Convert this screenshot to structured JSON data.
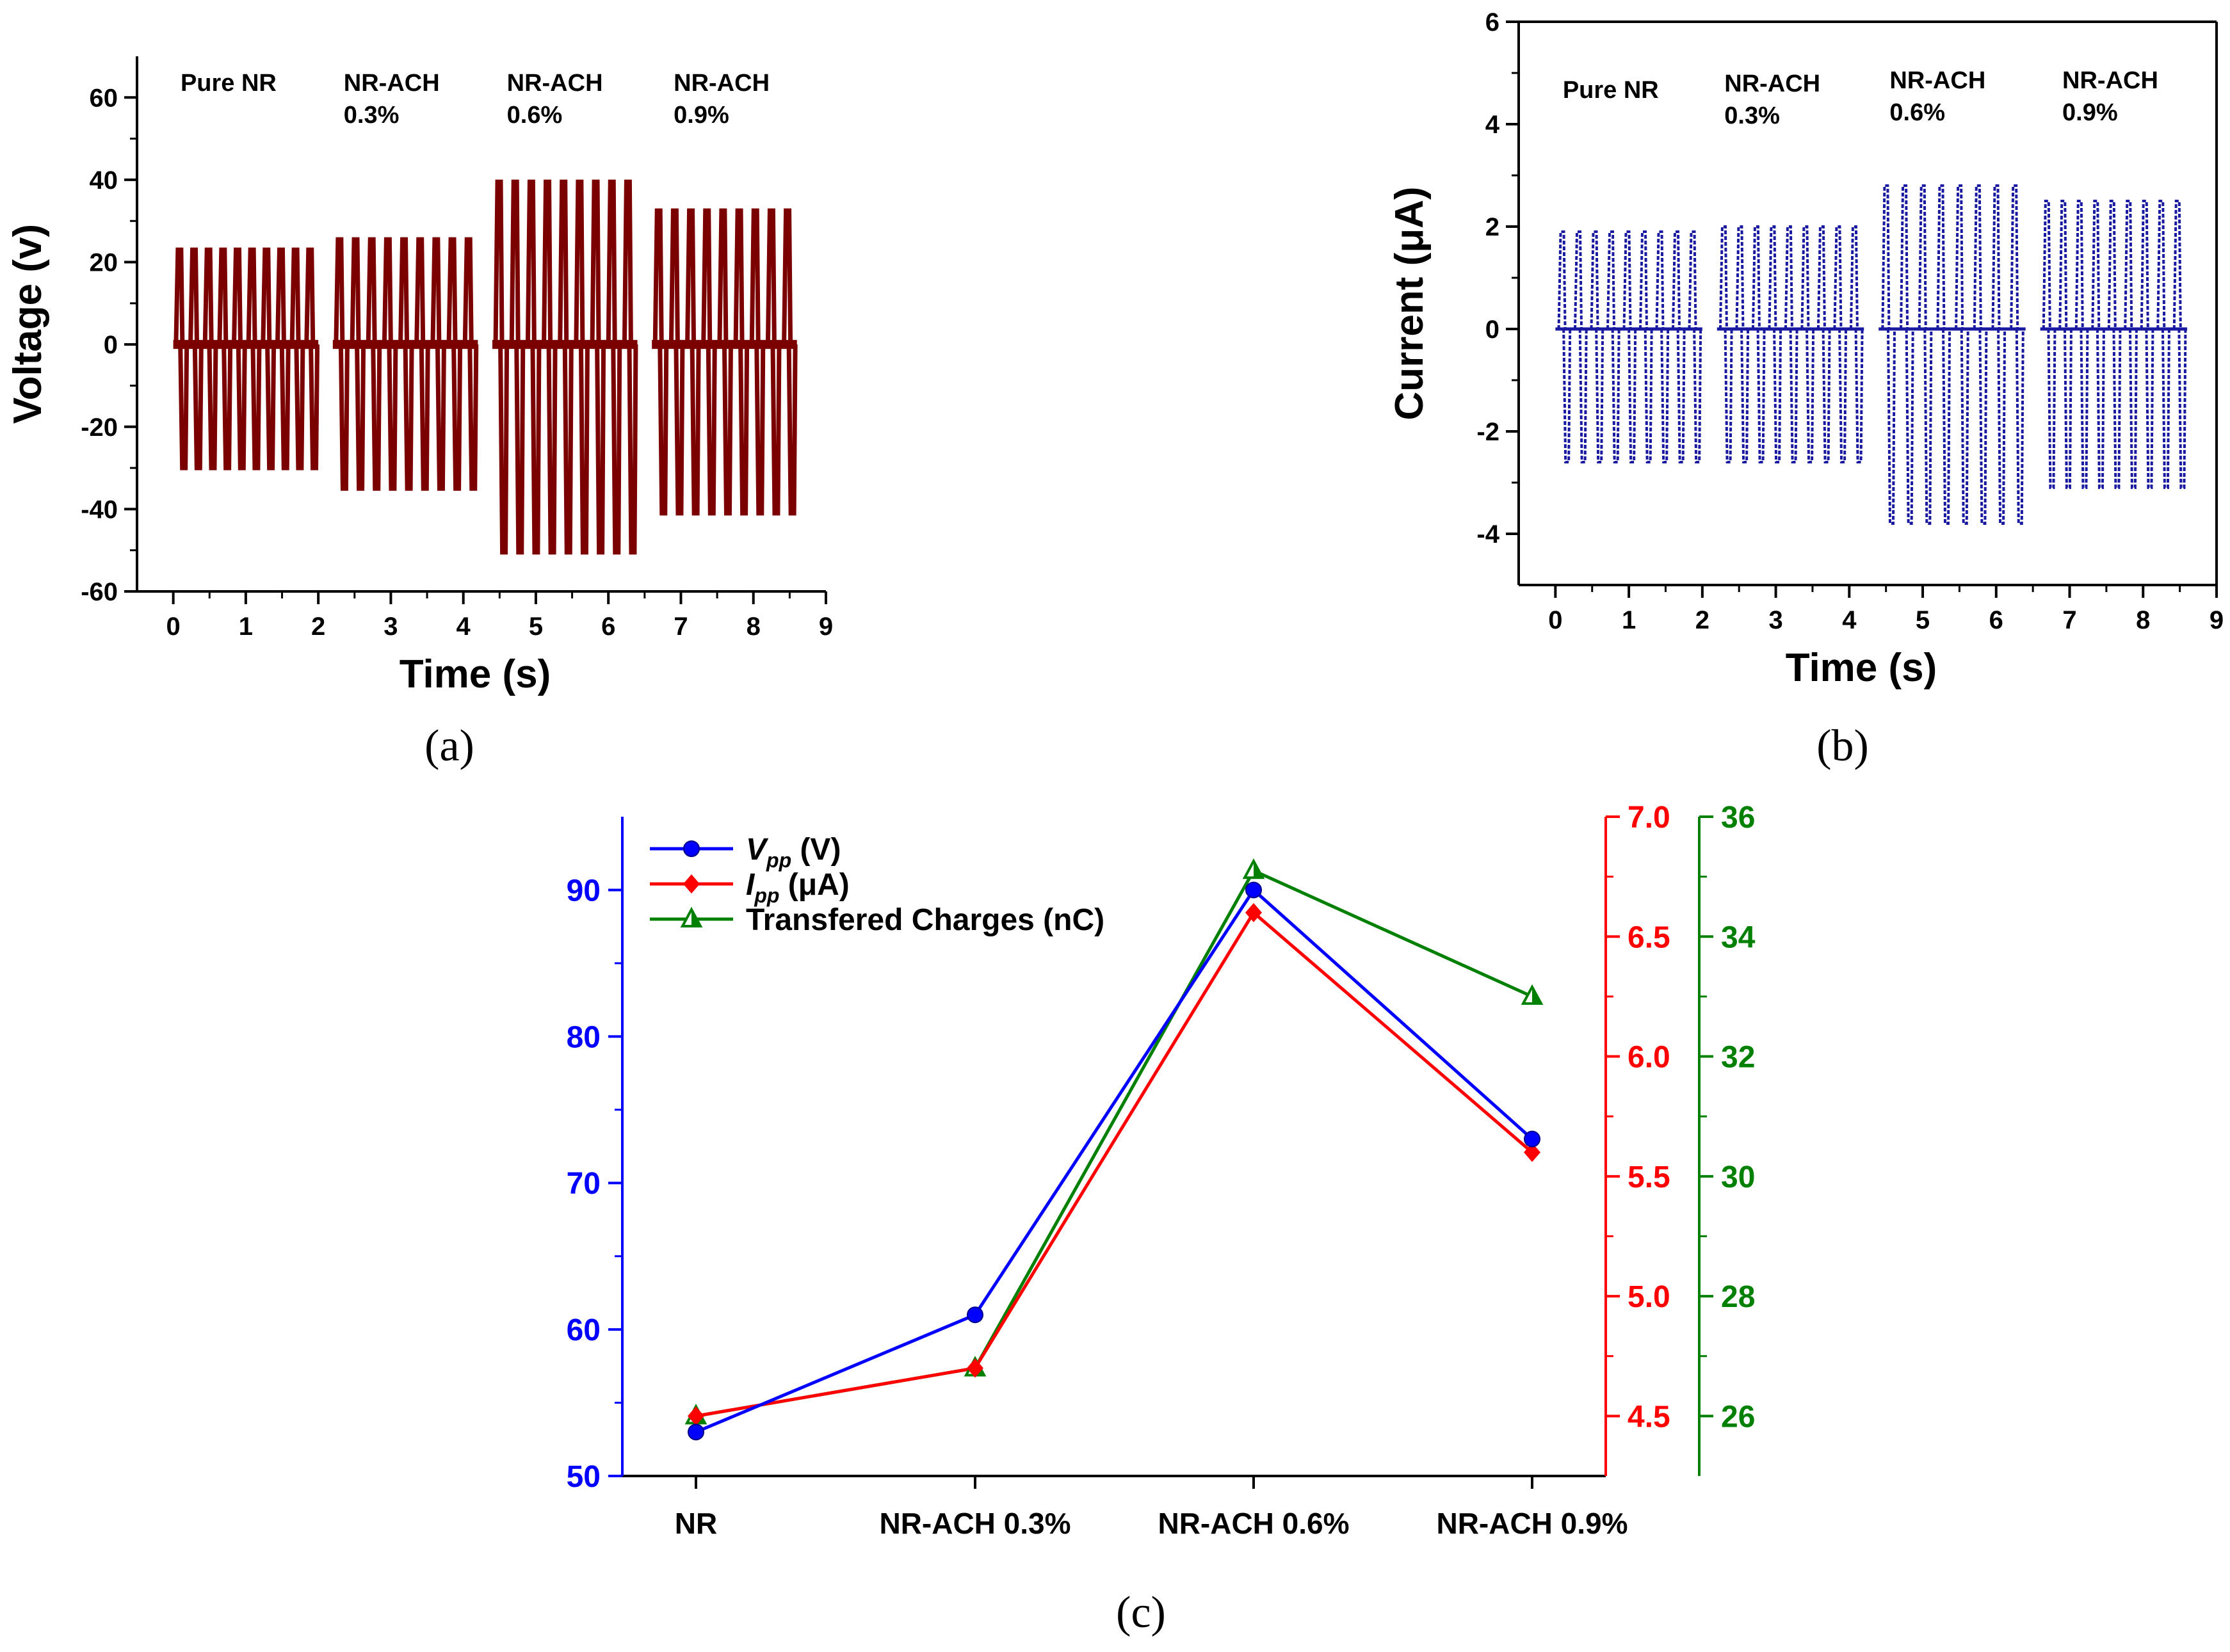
{
  "chart_data": [
    {
      "panel": "(a)",
      "type": "line",
      "xlabel": "Time (s)",
      "ylabel": "Voltage (v)",
      "xlim": [
        -0.5,
        9
      ],
      "ylim": [
        -60,
        70
      ],
      "xticks": [
        "0",
        "1",
        "2",
        "3",
        "4",
        "5",
        "6",
        "7",
        "8",
        "9"
      ],
      "yticks": [
        "-60",
        "-40",
        "-20",
        "0",
        "20",
        "40",
        "60"
      ],
      "color": "#7b0000",
      "annotations": [
        {
          "line1": "Pure NR",
          "line2": ""
        },
        {
          "line1": "NR-ACH",
          "line2": "0.3%"
        },
        {
          "line1": "NR-ACH",
          "line2": "0.6%"
        },
        {
          "line1": "NR-ACH",
          "line2": "0.9%"
        }
      ],
      "series": [
        {
          "group": "Pure NR",
          "x_start": 0.0,
          "x_end": 2.0,
          "pulses": 10,
          "peak_max": 23,
          "peak_min": -30
        },
        {
          "group": "NR-ACH 0.3%",
          "x_start": 2.2,
          "x_end": 4.2,
          "pulses": 9,
          "peak_max": 25.5,
          "peak_min": -35
        },
        {
          "group": "NR-ACH 0.6%",
          "x_start": 4.4,
          "x_end": 6.4,
          "pulses": 9,
          "peak_max": 39.5,
          "peak_min": -50.5
        },
        {
          "group": "NR-ACH 0.9%",
          "x_start": 6.6,
          "x_end": 8.6,
          "pulses": 9,
          "peak_max": 32.5,
          "peak_min": -41
        }
      ]
    },
    {
      "panel": "(b)",
      "type": "line",
      "xlabel": "Time (s)",
      "ylabel": "Current (μA)",
      "xlim": [
        -0.5,
        9
      ],
      "ylim": [
        -5,
        6
      ],
      "xticks": [
        "0",
        "1",
        "2",
        "3",
        "4",
        "5",
        "6",
        "7",
        "8",
        "9"
      ],
      "yticks": [
        "-4",
        "-2",
        "0",
        "2",
        "4",
        "6"
      ],
      "color": "#1a1aa0",
      "annotations": [
        {
          "line1": "Pure NR",
          "line2": ""
        },
        {
          "line1": "NR-ACH",
          "line2": "0.3%"
        },
        {
          "line1": "NR-ACH",
          "line2": "0.6%"
        },
        {
          "line1": "NR-ACH",
          "line2": "0.9%"
        }
      ],
      "series": [
        {
          "group": "Pure NR",
          "x_start": 0.0,
          "x_end": 2.0,
          "pulses": 9,
          "peak_max": 1.9,
          "peak_min": -2.6
        },
        {
          "group": "NR-ACH 0.3%",
          "x_start": 2.2,
          "x_end": 4.2,
          "pulses": 9,
          "peak_max": 2.0,
          "peak_min": -2.6
        },
        {
          "group": "NR-ACH 0.6%",
          "x_start": 4.4,
          "x_end": 6.4,
          "pulses": 8,
          "peak_max": 2.8,
          "peak_min": -3.8
        },
        {
          "group": "NR-ACH 0.9%",
          "x_start": 6.6,
          "x_end": 8.6,
          "pulses": 9,
          "peak_max": 2.5,
          "peak_min": -3.1
        }
      ]
    },
    {
      "panel": "(c)",
      "type": "line",
      "categories": [
        "NR",
        "NR-ACH 0.3%",
        "NR-ACH 0.6%",
        "NR-ACH 0.9%"
      ],
      "axes": {
        "left": {
          "lim": [
            50,
            95
          ],
          "ticks": [
            "50",
            "60",
            "70",
            "80",
            "90"
          ],
          "color": "#0000ff"
        },
        "right1": {
          "lim": [
            4.25,
            7.0
          ],
          "ticks": [
            "4.5",
            "5.0",
            "5.5",
            "6.0",
            "6.5",
            "7.0"
          ],
          "color": "#ff0000"
        },
        "right2": {
          "lim": [
            25,
            36
          ],
          "ticks": [
            "26",
            "28",
            "30",
            "32",
            "34",
            "36"
          ],
          "color": "#008000"
        }
      },
      "series": [
        {
          "name_main": "V",
          "name_sub": "pp",
          "name_unit": " (V)",
          "axis": "left",
          "color": "#0000ff",
          "marker": "circle",
          "values": [
            53,
            61,
            90,
            73
          ]
        },
        {
          "name_main": "I",
          "name_sub": "pp",
          "name_unit": " (μA)",
          "axis": "right1",
          "color": "#ff0000",
          "marker": "diamond",
          "values": [
            4.5,
            4.7,
            6.6,
            5.6
          ]
        },
        {
          "name_main": "Transfered Charges (nC)",
          "name_sub": "",
          "name_unit": "",
          "axis": "right2",
          "color": "#008000",
          "marker": "triangle",
          "values": [
            26,
            26.8,
            35.1,
            33
          ]
        }
      ]
    }
  ],
  "captions": {
    "a": "(a)",
    "b": "(b)",
    "c": "(c)"
  }
}
